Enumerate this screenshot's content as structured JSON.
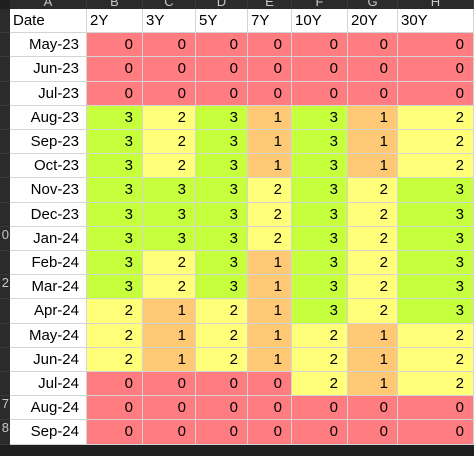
{
  "columns": [
    "A",
    "B",
    "C",
    "D",
    "E",
    "F",
    "G",
    "H"
  ],
  "header": [
    "Date",
    "2Y",
    "3Y",
    "5Y",
    "7Y",
    "10Y",
    "20Y",
    "30Y"
  ],
  "rows": [
    {
      "date": "May-23",
      "values": [
        0,
        0,
        0,
        0,
        0,
        0,
        0
      ]
    },
    {
      "date": "Jun-23",
      "values": [
        0,
        0,
        0,
        0,
        0,
        0,
        0
      ]
    },
    {
      "date": "Jul-23",
      "values": [
        0,
        0,
        0,
        0,
        0,
        0,
        0
      ]
    },
    {
      "date": "Aug-23",
      "values": [
        3,
        2,
        3,
        1,
        3,
        1,
        2
      ]
    },
    {
      "date": "Sep-23",
      "values": [
        3,
        2,
        3,
        1,
        3,
        1,
        2
      ]
    },
    {
      "date": "Oct-23",
      "values": [
        3,
        2,
        3,
        1,
        3,
        1,
        2
      ]
    },
    {
      "date": "Nov-23",
      "values": [
        3,
        3,
        3,
        2,
        3,
        2,
        3
      ]
    },
    {
      "date": "Dec-23",
      "values": [
        3,
        3,
        3,
        2,
        3,
        2,
        3
      ]
    },
    {
      "date": "Jan-24",
      "values": [
        3,
        3,
        3,
        2,
        3,
        2,
        3
      ]
    },
    {
      "date": "Feb-24",
      "values": [
        3,
        2,
        3,
        1,
        3,
        2,
        3
      ]
    },
    {
      "date": "Mar-24",
      "values": [
        3,
        2,
        3,
        1,
        3,
        2,
        3
      ]
    },
    {
      "date": "Apr-24",
      "values": [
        2,
        1,
        2,
        1,
        3,
        2,
        3
      ]
    },
    {
      "date": "May-24",
      "values": [
        2,
        1,
        2,
        1,
        2,
        1,
        2
      ]
    },
    {
      "date": "Jun-24",
      "values": [
        2,
        1,
        2,
        1,
        2,
        1,
        2
      ]
    },
    {
      "date": "Jul-24",
      "values": [
        0,
        0,
        0,
        0,
        2,
        1,
        2
      ]
    },
    {
      "date": "Aug-24",
      "values": [
        0,
        0,
        0,
        0,
        0,
        0,
        0
      ]
    },
    {
      "date": "Sep-24",
      "values": [
        0,
        0,
        0,
        0,
        0,
        0,
        0
      ]
    }
  ],
  "row_numbers": [
    "",
    "",
    "",
    "",
    "",
    "",
    "",
    "",
    "",
    "0",
    "",
    "2",
    "",
    "",
    "",
    "",
    "7",
    "8"
  ],
  "colors": {
    "0": "#ff7c80",
    "1": "#ffc874",
    "2": "#ffff7a",
    "3": "#c6ff3c"
  }
}
